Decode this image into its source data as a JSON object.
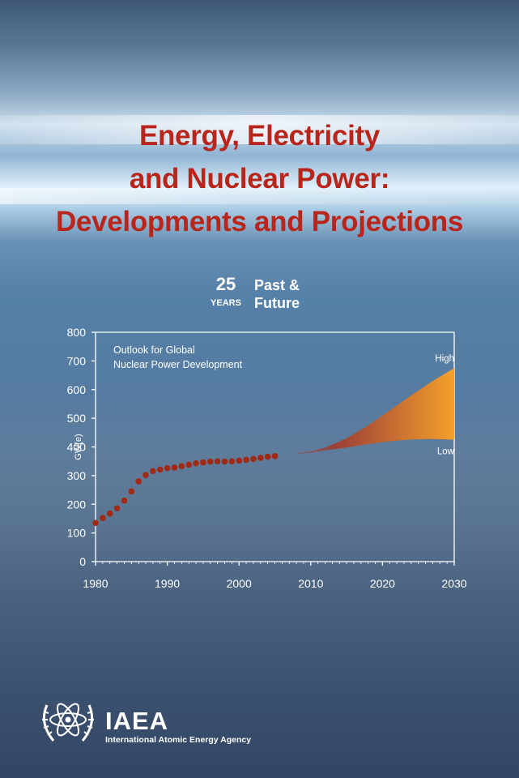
{
  "cover": {
    "title_lines": [
      "Energy, Electricity",
      "and Nuclear Power:",
      "Developments and Projections"
    ],
    "badge": {
      "number": "25",
      "word": "YEARS",
      "line1": "Past &",
      "line2": "Future"
    },
    "publisher": {
      "abbreviation": "IAEA",
      "name": "International Atomic Energy Agency",
      "emblem": "atom-olive-wreath-emblem"
    },
    "colors": {
      "title": "#b8261b",
      "text": "#ffffff",
      "dots": "#a02a16",
      "band_from": "#a33a2c",
      "band_to": "#f5a12b"
    }
  },
  "chart_data": {
    "type": "area",
    "title": "Outlook for Global\nNuclear Power Development",
    "xlabel": "",
    "ylabel": "GW(e)",
    "xlim": [
      1980,
      2030
    ],
    "ylim": [
      0,
      800
    ],
    "x_ticks": [
      1980,
      1990,
      2000,
      2010,
      2020,
      2030
    ],
    "y_ticks": [
      0,
      100,
      200,
      300,
      400,
      500,
      600,
      700,
      800
    ],
    "grid": false,
    "series": [
      {
        "style": "dots",
        "x": [
          1980,
          1981,
          1982,
          1983,
          1984,
          1985,
          1986,
          1987,
          1988,
          1989,
          1990,
          1991,
          1992,
          1993,
          1994,
          1995,
          1996,
          1997,
          1998,
          1999,
          2000,
          2001,
          2002,
          2003,
          2004,
          2005
        ],
        "y": [
          135,
          152,
          168,
          186,
          213,
          245,
          280,
          302,
          316,
          321,
          326,
          328,
          333,
          338,
          343,
          346,
          349,
          350,
          349,
          350,
          352,
          355,
          358,
          362,
          366,
          368
        ]
      },
      {
        "name": "High",
        "x": [
          2008,
          2010,
          2012,
          2015,
          2018,
          2021,
          2024,
          2027,
          2030
        ],
        "y": [
          378,
          385,
          398,
          430,
          475,
          527,
          580,
          630,
          675
        ]
      },
      {
        "name": "Low",
        "x": [
          2008,
          2010,
          2012,
          2015,
          2018,
          2021,
          2024,
          2027,
          2030
        ],
        "y": [
          375,
          380,
          388,
          398,
          410,
          420,
          426,
          428,
          425
        ]
      }
    ],
    "annotations": [
      "High",
      "Low"
    ]
  }
}
